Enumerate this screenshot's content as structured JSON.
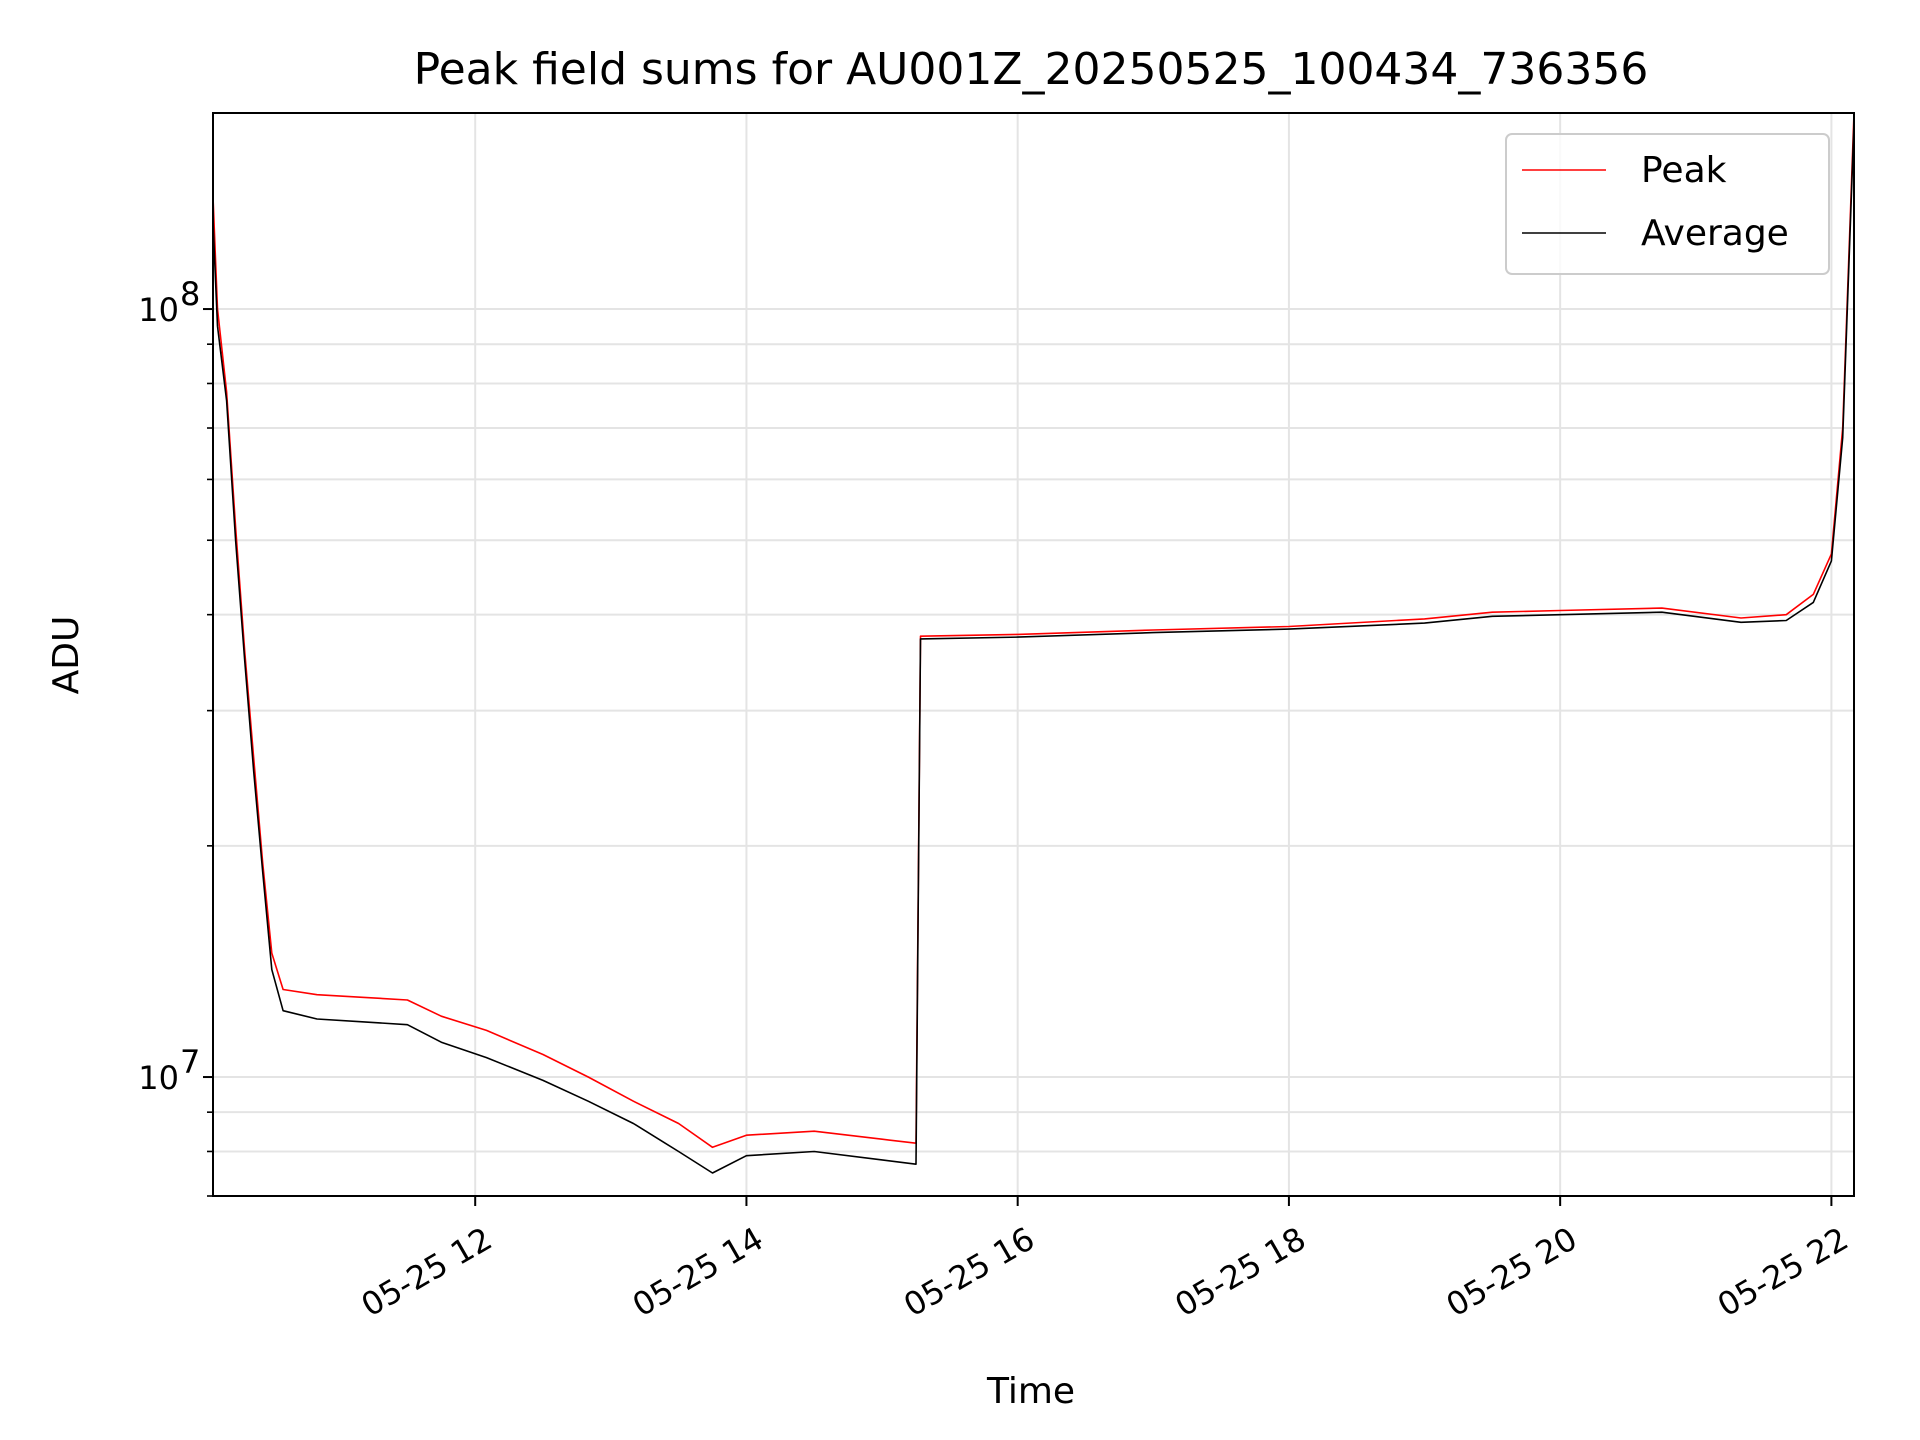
{
  "chart_data": {
    "type": "line",
    "title": "Peak field sums for AU001Z_20250525_100434_736356",
    "xlabel": "Time",
    "ylabel": "ADU",
    "y_scale": "log",
    "xlim": [
      "2025-05-25 10:04",
      "2025-05-25 22:10"
    ],
    "ylim": [
      7000000,
      180000000
    ],
    "x_ticks": [
      {
        "value": "2025-05-25 12:00",
        "label": "05-25 12"
      },
      {
        "value": "2025-05-25 14:00",
        "label": "05-25 14"
      },
      {
        "value": "2025-05-25 16:00",
        "label": "05-25 16"
      },
      {
        "value": "2025-05-25 18:00",
        "label": "05-25 18"
      },
      {
        "value": "2025-05-25 20:00",
        "label": "05-25 20"
      },
      {
        "value": "2025-05-25 22:00",
        "label": "05-25 22"
      }
    ],
    "y_ticks": [
      {
        "value": 10000000,
        "base": "10",
        "exp": "7"
      },
      {
        "value": 100000000,
        "base": "10",
        "exp": "8"
      }
    ],
    "grid": true,
    "legend_position": "top-right",
    "series": [
      {
        "name": "Peak",
        "color": "#ff0000",
        "points": [
          [
            "2025-05-25 10:04",
            140000000
          ],
          [
            "2025-05-25 10:06",
            100000000
          ],
          [
            "2025-05-25 10:10",
            78000000
          ],
          [
            "2025-05-25 10:14",
            52000000
          ],
          [
            "2025-05-25 10:18",
            36000000
          ],
          [
            "2025-05-25 10:22",
            26000000
          ],
          [
            "2025-05-25 10:26",
            19000000
          ],
          [
            "2025-05-25 10:30",
            14500000
          ],
          [
            "2025-05-25 10:35",
            13000000
          ],
          [
            "2025-05-25 10:50",
            12800000
          ],
          [
            "2025-05-25 11:10",
            12700000
          ],
          [
            "2025-05-25 11:30",
            12600000
          ],
          [
            "2025-05-25 11:45",
            12000000
          ],
          [
            "2025-05-25 12:05",
            11500000
          ],
          [
            "2025-05-25 12:30",
            10700000
          ],
          [
            "2025-05-25 12:50",
            10000000
          ],
          [
            "2025-05-25 13:10",
            9300000
          ],
          [
            "2025-05-25 13:30",
            8700000
          ],
          [
            "2025-05-25 13:45",
            8100000
          ],
          [
            "2025-05-25 14:00",
            8400000
          ],
          [
            "2025-05-25 14:30",
            8500000
          ],
          [
            "2025-05-25 15:00",
            8300000
          ],
          [
            "2025-05-25 15:15",
            8200000
          ],
          [
            "2025-05-25 15:17",
            37500000
          ],
          [
            "2025-05-25 16:00",
            37700000
          ],
          [
            "2025-05-25 17:00",
            38200000
          ],
          [
            "2025-05-25 18:00",
            38600000
          ],
          [
            "2025-05-25 19:00",
            39500000
          ],
          [
            "2025-05-25 19:30",
            40300000
          ],
          [
            "2025-05-25 20:00",
            40500000
          ],
          [
            "2025-05-25 20:45",
            40800000
          ],
          [
            "2025-05-25 21:20",
            39600000
          ],
          [
            "2025-05-25 21:40",
            40000000
          ],
          [
            "2025-05-25 21:52",
            42500000
          ],
          [
            "2025-05-25 22:00",
            48000000
          ],
          [
            "2025-05-25 22:05",
            70000000
          ],
          [
            "2025-05-25 22:10",
            180000000
          ]
        ]
      },
      {
        "name": "Average",
        "color": "#000000",
        "points": [
          [
            "2025-05-25 10:04",
            130000000
          ],
          [
            "2025-05-25 10:06",
            95000000
          ],
          [
            "2025-05-25 10:10",
            76000000
          ],
          [
            "2025-05-25 10:14",
            50000000
          ],
          [
            "2025-05-25 10:18",
            35000000
          ],
          [
            "2025-05-25 10:22",
            25000000
          ],
          [
            "2025-05-25 10:26",
            18500000
          ],
          [
            "2025-05-25 10:30",
            13800000
          ],
          [
            "2025-05-25 10:35",
            12200000
          ],
          [
            "2025-05-25 10:50",
            11900000
          ],
          [
            "2025-05-25 11:10",
            11800000
          ],
          [
            "2025-05-25 11:30",
            11700000
          ],
          [
            "2025-05-25 11:45",
            11100000
          ],
          [
            "2025-05-25 12:05",
            10600000
          ],
          [
            "2025-05-25 12:30",
            9900000
          ],
          [
            "2025-05-25 12:50",
            9300000
          ],
          [
            "2025-05-25 13:10",
            8700000
          ],
          [
            "2025-05-25 13:30",
            8000000
          ],
          [
            "2025-05-25 13:45",
            7500000
          ],
          [
            "2025-05-25 14:00",
            7900000
          ],
          [
            "2025-05-25 14:30",
            8000000
          ],
          [
            "2025-05-25 15:00",
            7800000
          ],
          [
            "2025-05-25 15:15",
            7700000
          ],
          [
            "2025-05-25 15:17",
            37200000
          ],
          [
            "2025-05-25 16:00",
            37400000
          ],
          [
            "2025-05-25 17:00",
            37900000
          ],
          [
            "2025-05-25 18:00",
            38300000
          ],
          [
            "2025-05-25 19:00",
            39000000
          ],
          [
            "2025-05-25 19:30",
            39800000
          ],
          [
            "2025-05-25 20:00",
            40000000
          ],
          [
            "2025-05-25 20:45",
            40300000
          ],
          [
            "2025-05-25 21:20",
            39100000
          ],
          [
            "2025-05-25 21:40",
            39300000
          ],
          [
            "2025-05-25 21:52",
            41500000
          ],
          [
            "2025-05-25 22:00",
            47000000
          ],
          [
            "2025-05-25 22:05",
            68000000
          ],
          [
            "2025-05-25 22:10",
            175000000
          ]
        ]
      }
    ]
  }
}
